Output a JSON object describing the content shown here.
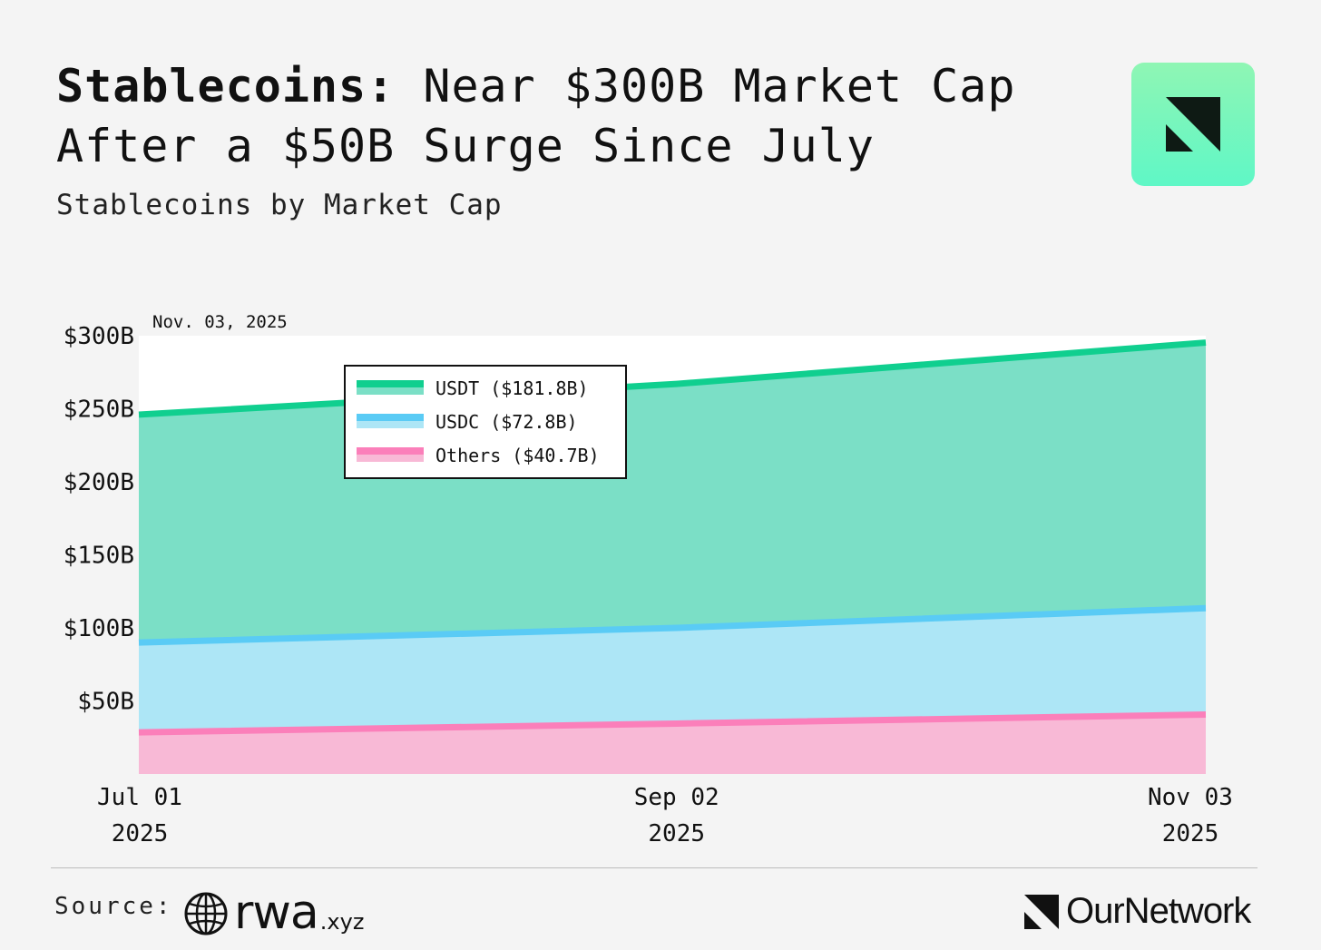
{
  "header": {
    "title_bold": "Stablecoins:",
    "title_rest": " Near $300B Market Cap After a $50B Surge Since July",
    "subtitle": "Stablecoins by Market Cap"
  },
  "footer": {
    "source_label": "Source:",
    "source_brand": "rwa",
    "source_brand_tld": ".xyz",
    "publisher": "OurNetwork"
  },
  "colors": {
    "usdt_line": "#10cf8f",
    "usdt_fill": "#7bdfc6",
    "usdc_line": "#5acbf5",
    "usdc_fill": "#ade6f6",
    "others_line": "#fb7fba",
    "others_fill": "#f8b9d6",
    "background": "#f4f4f4"
  },
  "chart_data": {
    "type": "area",
    "stacked": true,
    "date_annotation": "Nov. 03, 2025",
    "x": [
      "2025-07-01",
      "2025-09-02",
      "2025-11-03"
    ],
    "x_tick_labels": [
      {
        "line1": "Jul 01",
        "line2": "2025"
      },
      {
        "line1": "Sep 02",
        "line2": "2025"
      },
      {
        "line1": "Nov 03",
        "line2": "2025"
      }
    ],
    "y_tick_labels": [
      "$50B",
      "$100B",
      "$150B",
      "$200B",
      "$250B",
      "$300B"
    ],
    "y_ticks": [
      50,
      100,
      150,
      200,
      250,
      300
    ],
    "ylim": [
      0,
      300
    ],
    "series": [
      {
        "name": "Others",
        "legend_label": "Others ($40.7B)",
        "values": [
          28.5,
          34.5,
          40.7
        ]
      },
      {
        "name": "USDC",
        "legend_label": "USDC ($72.8B)",
        "values": [
          61.5,
          65.5,
          72.8
        ]
      },
      {
        "name": "USDT",
        "legend_label": "USDT ($181.8B)",
        "values": [
          156,
          167,
          181.8
        ]
      }
    ],
    "legend_order": [
      "USDT",
      "USDC",
      "Others"
    ],
    "legend_position": "top-left",
    "grid": false
  }
}
